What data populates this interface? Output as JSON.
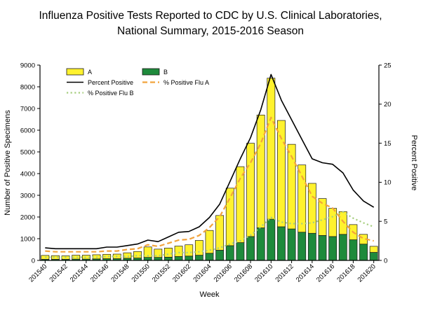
{
  "page": {
    "title_line1": "Influenza Positive Tests Reported to CDC by U.S. Clinical Laboratories,",
    "title_line2": "National Summary, 2015-2016 Season"
  },
  "chart_data": {
    "type": "bar",
    "subtype": "stacked-bar-with-lines",
    "title": "Influenza Positive Tests Reported to CDC by U.S. Clinical Laboratories, National Summary, 2015-2016 Season",
    "xlabel": "Week",
    "ylabel_left": "Number of Positive Specimens",
    "ylabel_right": "Percent Positive",
    "ylim_left": [
      0,
      9000
    ],
    "ytick_step_left": 1000,
    "ylim_right": [
      0,
      25
    ],
    "ytick_step_right": 5,
    "xtick_every": 2,
    "grid": false,
    "legend_position": "top-left-inside",
    "categories": [
      "201540",
      "201541",
      "201542",
      "201543",
      "201544",
      "201545",
      "201546",
      "201547",
      "201548",
      "201549",
      "201550",
      "201551",
      "201552",
      "201601",
      "201602",
      "201603",
      "201604",
      "201605",
      "201606",
      "201607",
      "201608",
      "201609",
      "201610",
      "201611",
      "201612",
      "201613",
      "201614",
      "201615",
      "201616",
      "201617",
      "201618",
      "201619",
      "201620"
    ],
    "bar_series": [
      {
        "name": "A",
        "color": "#FFF22E",
        "stack": "specimens",
        "values": [
          180,
          170,
          160,
          180,
          180,
          190,
          200,
          210,
          250,
          300,
          480,
          380,
          420,
          480,
          520,
          680,
          1050,
          1600,
          2650,
          3500,
          4300,
          5200,
          6500,
          4900,
          3900,
          3100,
          2300,
          1700,
          1300,
          1050,
          700,
          450,
          280
        ]
      },
      {
        "name": "B",
        "color": "#1E8A3B",
        "stack": "specimens",
        "values": [
          50,
          50,
          50,
          60,
          60,
          70,
          80,
          80,
          100,
          110,
          140,
          140,
          150,
          180,
          200,
          240,
          330,
          470,
          680,
          820,
          1100,
          1500,
          1900,
          1550,
          1450,
          1300,
          1250,
          1150,
          1100,
          1200,
          950,
          750,
          370
        ]
      }
    ],
    "line_series": [
      {
        "name": "Percent Positive",
        "color": "#000000",
        "style": "solid",
        "axis": "right",
        "values": [
          1.6,
          1.5,
          1.5,
          1.5,
          1.5,
          1.5,
          1.7,
          1.7,
          1.9,
          2.1,
          2.6,
          2.4,
          3.0,
          3.6,
          3.7,
          4.3,
          5.5,
          7.2,
          10.1,
          13.0,
          15.7,
          19.3,
          23.8,
          20.5,
          18.0,
          15.5,
          13.0,
          12.5,
          12.3,
          11.2,
          9.0,
          7.6,
          6.8
        ]
      },
      {
        "name": "% Positive Flu A",
        "color": "#F2A33C",
        "style": "dashed",
        "axis": "right",
        "values": [
          1.2,
          1.1,
          1.1,
          1.1,
          1.1,
          1.1,
          1.2,
          1.2,
          1.4,
          1.5,
          2.0,
          1.8,
          2.2,
          2.6,
          2.7,
          3.2,
          4.2,
          5.6,
          8.0,
          10.5,
          12.5,
          15.0,
          18.3,
          15.6,
          13.3,
          10.8,
          8.2,
          7.3,
          6.7,
          5.0,
          3.6,
          2.8,
          2.5
        ]
      },
      {
        "name": "% Positive Flu B",
        "color": "#A6CE7E",
        "style": "dotted",
        "axis": "right",
        "values": [
          0.4,
          0.4,
          0.4,
          0.4,
          0.4,
          0.4,
          0.5,
          0.5,
          0.5,
          0.6,
          0.6,
          0.6,
          0.8,
          1.0,
          1.0,
          1.1,
          1.3,
          1.6,
          2.1,
          2.5,
          3.2,
          4.3,
          5.5,
          4.9,
          4.7,
          4.7,
          4.8,
          5.2,
          5.6,
          6.2,
          5.4,
          4.8,
          4.3
        ]
      }
    ]
  }
}
